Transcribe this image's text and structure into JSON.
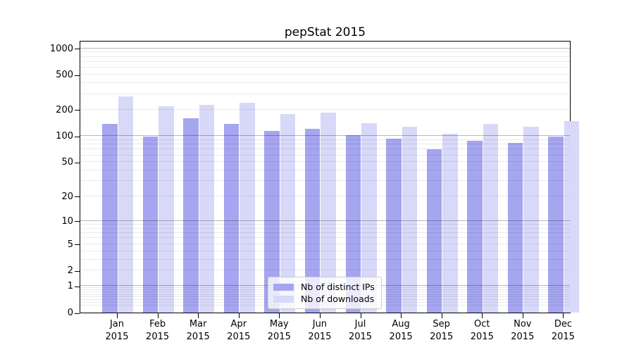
{
  "chart_data": {
    "type": "bar",
    "title": "pepStat 2015",
    "categories": [
      "Jan 2015",
      "Feb 2015",
      "Mar 2015",
      "Apr 2015",
      "May 2015",
      "Jun 2015",
      "Jul 2015",
      "Aug 2015",
      "Sep 2015",
      "Oct 2015",
      "Nov 2015",
      "Dec 2015"
    ],
    "series": [
      {
        "name": "Nb of distinct IPs",
        "color": "#a5a5f0",
        "values": [
          138,
          99,
          159,
          139,
          115,
          121,
          102,
          94,
          71,
          88,
          84,
          99
        ]
      },
      {
        "name": "Nb of downloads",
        "color": "#d8d8f8",
        "values": [
          285,
          220,
          228,
          240,
          180,
          185,
          140,
          129,
          107,
          137,
          127,
          148
        ]
      }
    ],
    "xlabel": "",
    "ylabel": "",
    "yscale": "log1p",
    "ylim": [
      0,
      1240
    ],
    "y_ticks": [
      0,
      1,
      2,
      5,
      10,
      20,
      50,
      100,
      200,
      500,
      1000
    ],
    "y_major_gridlines": [
      1,
      10,
      100,
      1000
    ],
    "y_minor_gridlines": [
      0.2,
      0.3,
      0.4,
      0.5,
      0.6,
      0.7,
      0.8,
      0.9,
      2,
      3,
      4,
      5,
      6,
      7,
      8,
      9,
      20,
      30,
      40,
      50,
      60,
      70,
      80,
      90,
      200,
      300,
      400,
      500,
      600,
      700,
      800,
      900
    ],
    "grid": "on",
    "legend_position": "lower center"
  }
}
